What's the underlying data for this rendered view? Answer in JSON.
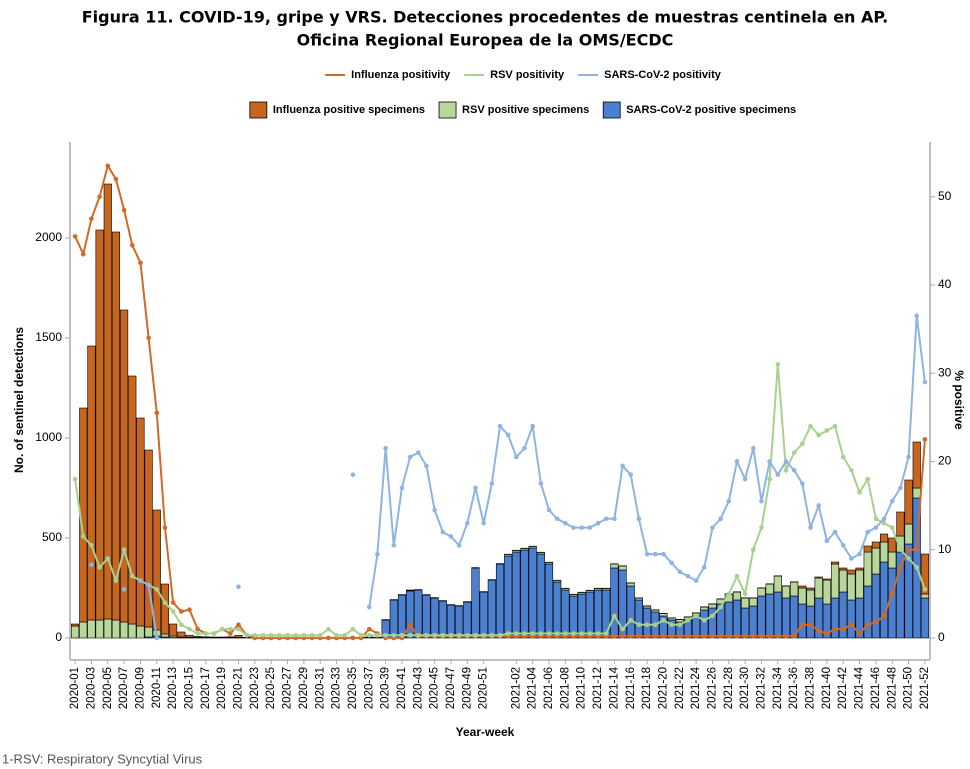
{
  "chart_data": {
    "type": "bar",
    "title": [
      "Figura 11. COVID-19, gripe y VRS. Detecciones procedentes de muestras centinela en AP.",
      "Oficina Regional Europea de la OMS/ECDC"
    ],
    "x_label": "Year-week",
    "y_label": "No. of sentinel detections",
    "y2_label": "% positive",
    "footnote": "1-RSV: Respiratory Syncytial Virus",
    "categories": [
      "2020-01",
      null,
      "2020-03",
      null,
      "2020-05",
      null,
      "2020-07",
      null,
      "2020-09",
      null,
      "2020-11",
      null,
      "2020-13",
      null,
      "2020-15",
      null,
      "2020-17",
      null,
      "2020-19",
      null,
      "2020-21",
      null,
      "2020-23",
      null,
      "2020-25",
      null,
      "2020-27",
      null,
      "2020-29",
      null,
      "2020-31",
      null,
      "2020-33",
      null,
      "2020-35",
      null,
      "2020-37",
      null,
      "2020-39",
      null,
      "2020-41",
      null,
      "2020-43",
      null,
      "2020-45",
      null,
      "2020-47",
      null,
      "2020-49",
      null,
      "2020-51",
      null,
      null,
      null,
      "2021-02",
      null,
      "2021-04",
      null,
      "2021-06",
      null,
      "2021-08",
      null,
      "2021-10",
      null,
      "2021-12",
      null,
      "2021-14",
      null,
      "2021-16",
      null,
      "2021-18",
      null,
      "2021-20",
      null,
      "2021-22",
      null,
      "2021-24",
      null,
      "2021-26",
      null,
      "2021-28",
      null,
      "2021-30",
      null,
      "2021-32",
      null,
      "2021-34",
      null,
      "2021-36",
      null,
      "2021-38",
      null,
      "2021-40",
      null,
      "2021-42",
      null,
      "2021-44",
      null,
      "2021-46",
      null,
      "2021-48",
      null,
      "2021-50",
      null,
      "2021-52"
    ],
    "ylim": [
      -110,
      2480
    ],
    "yticks": [
      0,
      500,
      1000,
      1500,
      2000
    ],
    "y2lim": [
      -2.5,
      56.2
    ],
    "y2ticks": [
      0,
      10,
      20,
      30,
      40,
      50
    ],
    "grid": false,
    "series": [
      {
        "name": "Influenza positivity",
        "type": "line",
        "axis": "y2",
        "color": "#cf6a28",
        "values": [
          45.5,
          43.5,
          47.5,
          50,
          53.5,
          52,
          48.5,
          44.5,
          42.5,
          34,
          25.5,
          12.5,
          4,
          3,
          3.2,
          1,
          0.5,
          0.5,
          1,
          0.5,
          1.5,
          0.3,
          0,
          0,
          0,
          0,
          0,
          0,
          0,
          0,
          0,
          0,
          0,
          0,
          0,
          0,
          1,
          0.5,
          0,
          0,
          0,
          1.5,
          0.2,
          0.2,
          0.2,
          0.2,
          0.2,
          0.2,
          0.2,
          0.2,
          0.2,
          0.2,
          0.2,
          0.2,
          0.2,
          0.2,
          0.2,
          0.2,
          0.2,
          0.2,
          0.2,
          0.2,
          0.2,
          0.2,
          0.2,
          0.2,
          0.2,
          0.2,
          0.2,
          0.2,
          0.2,
          0.2,
          0.2,
          0.2,
          0.2,
          0.2,
          0.2,
          0.2,
          0.2,
          0.2,
          0.2,
          0.2,
          0.2,
          0.2,
          0.2,
          0.2,
          0.2,
          0.2,
          0.2,
          1.5,
          1.5,
          0.8,
          0.5,
          1,
          1,
          1.5,
          0.5,
          1.5,
          1.8,
          2.5,
          5,
          8,
          10,
          10,
          22.5
        ]
      },
      {
        "name": "RSV positivity",
        "type": "line",
        "axis": "y2",
        "color": "#a9d18e",
        "values": [
          18,
          11.5,
          10.5,
          8,
          9,
          6.5,
          10,
          7,
          6.5,
          6,
          5.5,
          4,
          3,
          1.5,
          1,
          0.5,
          0.5,
          0.5,
          1,
          1,
          1,
          0.3,
          0.3,
          0.3,
          0.3,
          0.3,
          0.3,
          0.3,
          0.3,
          0.3,
          0.3,
          1,
          0.3,
          0.3,
          1,
          0.3,
          0.3,
          0.3,
          0.3,
          0.3,
          0.3,
          0.3,
          0.3,
          0.3,
          0.3,
          0.3,
          0.3,
          0.3,
          0.3,
          0.3,
          0.3,
          0.3,
          0.3,
          0.5,
          0.5,
          0.5,
          0.5,
          0.5,
          0.5,
          0.5,
          0.5,
          0.5,
          0.5,
          0.5,
          0.5,
          0.5,
          2.5,
          1,
          2,
          1.5,
          1.5,
          1.5,
          2,
          1.5,
          1.5,
          2,
          2.5,
          2,
          2.5,
          3.5,
          5,
          7,
          5,
          10,
          12.5,
          18,
          31,
          19,
          21,
          22,
          24,
          23,
          23.5,
          24,
          20.5,
          19,
          16.5,
          18,
          13.5,
          13,
          12.5,
          10,
          9,
          8,
          5.5
        ]
      },
      {
        "name": "SARS-CoV-2 positivity",
        "type": "line",
        "axis": "y2",
        "color": "#8db4e2",
        "values": [
          null,
          null,
          8.3,
          null,
          null,
          null,
          5.5,
          null,
          6.5,
          6,
          0,
          null,
          null,
          null,
          null,
          null,
          null,
          null,
          null,
          null,
          5.8,
          null,
          null,
          null,
          null,
          null,
          null,
          null,
          null,
          null,
          null,
          null,
          null,
          null,
          18.5,
          null,
          3.5,
          9.5,
          21.5,
          10.5,
          17,
          20.5,
          21,
          19.5,
          14.5,
          12,
          11.5,
          10.5,
          13,
          17,
          13,
          17.5,
          24,
          23,
          20.5,
          21.5,
          24,
          17.5,
          14.5,
          13.5,
          13,
          12.5,
          12.5,
          12.5,
          13,
          13.5,
          13.5,
          19.5,
          18.5,
          13.5,
          9.5,
          9.5,
          9.5,
          8.5,
          7.5,
          7,
          6.5,
          8,
          12.5,
          13.5,
          15.5,
          20,
          18,
          21.5,
          15.5,
          20,
          18.5,
          20,
          19,
          17.5,
          12.5,
          15,
          11,
          12,
          10.5,
          9,
          9.5,
          12,
          12.5,
          13.5,
          15.5,
          17,
          20.5,
          36.5,
          29
        ]
      },
      {
        "name": "Influenza positive specimens",
        "type": "bar",
        "color": "#c8651f",
        "values": [
          10,
          1070,
          1370,
          1950,
          2175,
          1940,
          1560,
          1240,
          1040,
          885,
          600,
          250,
          60,
          25,
          10,
          5,
          3,
          2,
          2,
          3,
          10,
          0,
          0,
          0,
          0,
          0,
          0,
          0,
          0,
          0,
          0,
          0,
          0,
          0,
          0,
          0,
          2,
          0,
          0,
          0,
          0,
          3,
          0,
          0,
          0,
          0,
          0,
          0,
          0,
          0,
          0,
          0,
          0,
          1,
          1,
          1,
          1,
          1,
          1,
          1,
          1,
          1,
          1,
          1,
          1,
          1,
          1,
          1,
          1,
          1,
          1,
          1,
          1,
          1,
          1,
          1,
          1,
          1,
          1,
          1,
          1,
          1,
          1,
          1,
          1,
          1,
          1,
          1,
          1,
          10,
          10,
          5,
          5,
          10,
          10,
          20,
          10,
          30,
          30,
          40,
          70,
          120,
          220,
          230,
          200
        ]
      },
      {
        "name": "RSV positive specimens",
        "type": "bar",
        "color": "#b9d79b",
        "values": [
          60,
          80,
          90,
          90,
          95,
          90,
          80,
          70,
          60,
          50,
          30,
          15,
          8,
          4,
          3,
          2,
          2,
          2,
          2,
          2,
          2,
          2,
          2,
          2,
          2,
          2,
          2,
          2,
          2,
          2,
          2,
          2,
          2,
          2,
          2,
          2,
          2,
          2,
          2,
          2,
          2,
          2,
          2,
          2,
          2,
          2,
          2,
          2,
          2,
          2,
          2,
          2,
          2,
          8,
          8,
          8,
          8,
          8,
          8,
          8,
          8,
          8,
          8,
          8,
          8,
          8,
          20,
          20,
          15,
          10,
          10,
          10,
          12,
          10,
          12,
          15,
          15,
          15,
          20,
          25,
          40,
          40,
          50,
          40,
          40,
          50,
          80,
          60,
          70,
          80,
          80,
          100,
          120,
          170,
          110,
          130,
          140,
          170,
          130,
          100,
          80,
          80,
          100,
          50,
          20
        ]
      },
      {
        "name": "SARS-CoV-2 positive specimens",
        "type": "bar",
        "color": "#4a7fd1",
        "values": [
          0,
          0,
          0,
          0,
          0,
          0,
          0,
          0,
          0,
          5,
          10,
          5,
          2,
          1,
          1,
          1,
          1,
          1,
          1,
          1,
          1,
          1,
          1,
          1,
          1,
          1,
          1,
          1,
          1,
          1,
          1,
          1,
          1,
          1,
          1,
          1,
          1,
          1,
          90,
          190,
          215,
          235,
          240,
          215,
          200,
          185,
          165,
          160,
          180,
          350,
          230,
          290,
          370,
          410,
          430,
          440,
          450,
          420,
          370,
          280,
          240,
          210,
          220,
          230,
          240,
          240,
          350,
          340,
          260,
          190,
          150,
          130,
          110,
          90,
          80,
          90,
          110,
          140,
          150,
          170,
          180,
          190,
          150,
          160,
          210,
          220,
          230,
          200,
          210,
          170,
          160,
          200,
          170,
          200,
          230,
          190,
          200,
          260,
          320,
          380,
          350,
          430,
          470,
          700,
          200
        ]
      }
    ]
  }
}
